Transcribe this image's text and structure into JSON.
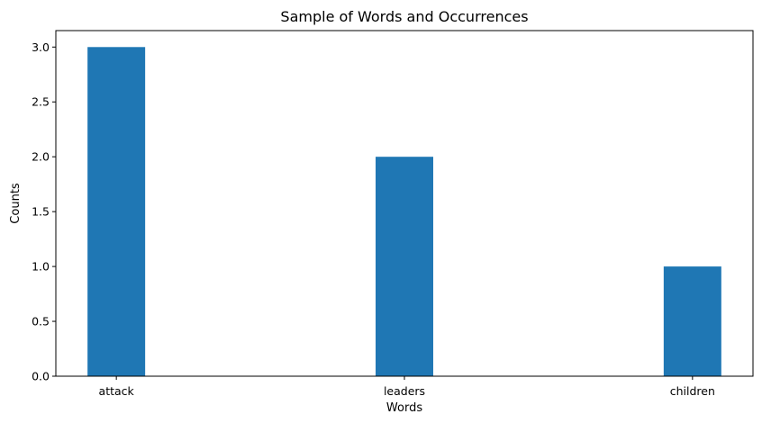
{
  "chart_data": {
    "type": "bar",
    "title": "Sample of Words and Occurrences",
    "xlabel": "Words",
    "ylabel": "Counts",
    "categories": [
      "attack",
      "leaders",
      "children"
    ],
    "values": [
      3,
      2,
      1
    ],
    "ylim": [
      0,
      3.15
    ],
    "yticks": [
      0.0,
      0.5,
      1.0,
      1.5,
      2.0,
      2.5,
      3.0
    ],
    "ytick_labels": [
      "0.0",
      "0.5",
      "1.0",
      "1.5",
      "2.0",
      "2.5",
      "3.0"
    ],
    "bar_color": "#1f77b4",
    "grid": false,
    "legend": "none"
  }
}
